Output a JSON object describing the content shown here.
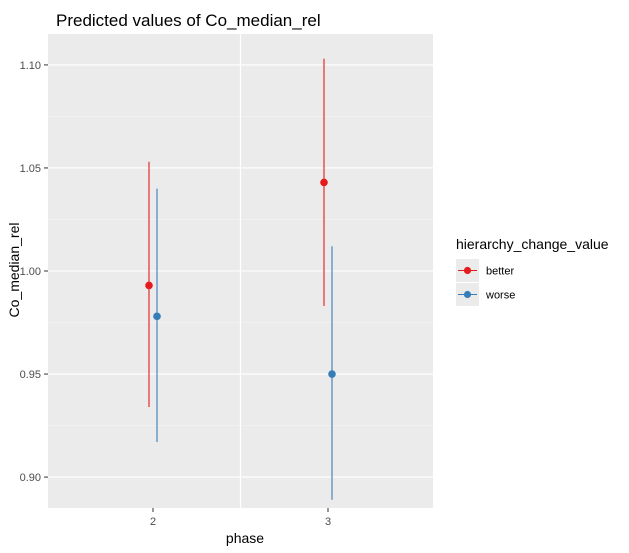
{
  "chart_data": {
    "type": "scatter",
    "title": "Predicted values of Co_median_rel",
    "xlabel": "phase",
    "ylabel": "Co_median_rel",
    "categories": [
      "2",
      "3"
    ],
    "ylim": [
      0.885,
      1.115
    ],
    "yticks": [
      "0.90",
      "0.95",
      "1.00",
      "1.05",
      "1.10"
    ],
    "legend_title": "hierarchy_change_value",
    "legend_position": "right",
    "grid": true,
    "series": [
      {
        "name": "better",
        "color": "#e41a1c",
        "points": [
          {
            "x": "2",
            "y": 0.993,
            "low": 0.934,
            "high": 1.053
          },
          {
            "x": "3",
            "y": 1.043,
            "low": 0.983,
            "high": 1.103
          }
        ]
      },
      {
        "name": "worse",
        "color": "#377eb8",
        "points": [
          {
            "x": "2",
            "y": 0.978,
            "low": 0.917,
            "high": 1.04
          },
          {
            "x": "3",
            "y": 0.95,
            "low": 0.889,
            "high": 1.012
          }
        ]
      }
    ]
  }
}
